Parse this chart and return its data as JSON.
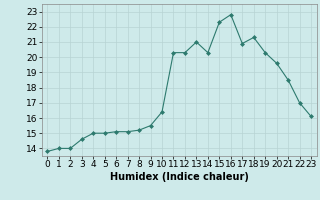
{
  "x": [
    0,
    1,
    2,
    3,
    4,
    5,
    6,
    7,
    8,
    9,
    10,
    11,
    12,
    13,
    14,
    15,
    16,
    17,
    18,
    19,
    20,
    21,
    22,
    23
  ],
  "y": [
    13.8,
    14.0,
    14.0,
    14.6,
    15.0,
    15.0,
    15.1,
    15.1,
    15.2,
    15.5,
    16.4,
    20.3,
    20.3,
    21.0,
    20.3,
    22.3,
    22.8,
    20.9,
    21.3,
    20.3,
    19.6,
    18.5,
    17.0,
    16.1
  ],
  "xlabel": "Humidex (Indice chaleur)",
  "xlim": [
    -0.5,
    23.5
  ],
  "ylim": [
    13.5,
    23.5
  ],
  "yticks": [
    14,
    15,
    16,
    17,
    18,
    19,
    20,
    21,
    22,
    23
  ],
  "xticks": [
    0,
    1,
    2,
    3,
    4,
    5,
    6,
    7,
    8,
    9,
    10,
    11,
    12,
    13,
    14,
    15,
    16,
    17,
    18,
    19,
    20,
    21,
    22,
    23
  ],
  "line_color": "#2d7a6e",
  "marker": "D",
  "marker_size": 2.0,
  "bg_color": "#ceeaea",
  "grid_color": "#b8d4d4",
  "xlabel_fontsize": 7,
  "tick_fontsize": 6.5
}
